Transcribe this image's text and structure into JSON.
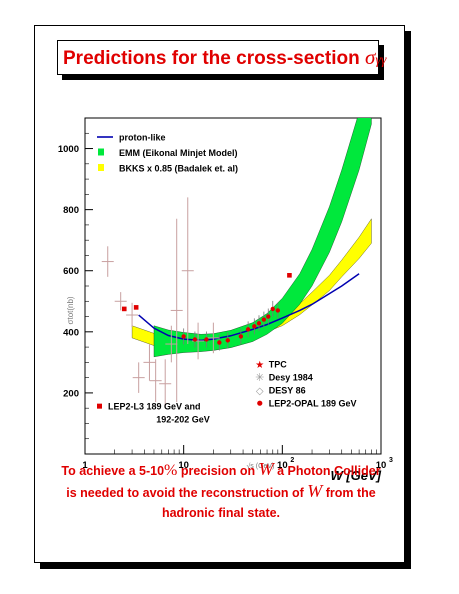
{
  "title": {
    "prefix": "Predictions for the cross-section",
    "symbol": "σ",
    "subscript": "γγ"
  },
  "caption": {
    "l1a": "To achieve a 5-10",
    "l1pct": "%",
    "l1b": " precision on ",
    "l1w": "W",
    "l1c": " a Photon Collider",
    "l2a": "is needed to avoid the reconstruction of ",
    "l2w": "W",
    "l2b": " from the",
    "l3": "hadronic final state."
  },
  "colors": {
    "title": "#e00000",
    "emm_band": "#00e83c",
    "bkks_band": "#ffff00",
    "proton_line": "#0000b0",
    "points": "#e00000",
    "old_data": "#c8a0a0"
  },
  "chart_data": {
    "type": "line",
    "xscale": "log",
    "xlim": [
      1,
      1000
    ],
    "ylim": [
      0,
      1100
    ],
    "grid": false,
    "xticks": [
      {
        "v": 1,
        "base": "1",
        "exp": ""
      },
      {
        "v": 10,
        "base": "10",
        "exp": ""
      },
      {
        "v": 100,
        "base": "10",
        "exp": "2"
      },
      {
        "v": 1000,
        "base": "10",
        "exp": "3"
      }
    ],
    "yticks": [
      200,
      400,
      600,
      800,
      1000
    ],
    "xlabel_small": "√s (GeV)",
    "xlabel_big": "W [GeV]",
    "ylabel": "σtot(nb)",
    "legend_top": [
      {
        "label": "proton-like",
        "kind": "line",
        "color": "#0000b0"
      },
      {
        "label": "EMM (Eikonal Minjet Model)",
        "kind": "box",
        "color": "#00e83c"
      },
      {
        "label": "BKKS x 0.85 (Badalek et. al)",
        "kind": "box",
        "color": "#ffff00"
      }
    ],
    "legend_bottom_right": [
      {
        "label": "TPC",
        "marker": "star"
      },
      {
        "label": "Desy 1984",
        "marker": "asterisk"
      },
      {
        "label": "DESY 86",
        "marker": "diamond"
      },
      {
        "label": "LEP2-OPAL 189 GeV",
        "marker": "circle"
      }
    ],
    "legend_bottom_left": {
      "line1": "LEP2-L3 189 GeV and",
      "line2": "192-202 GeV",
      "marker": "square"
    },
    "series": [
      {
        "name": "proton-like",
        "x": [
          3.5,
          5,
          7,
          10,
          15,
          20,
          30,
          50,
          70,
          100,
          150,
          200,
          300,
          400,
          600
        ],
        "y": [
          455,
          412,
          388,
          376,
          372,
          376,
          387,
          408,
          424,
          445,
          470,
          490,
          525,
          550,
          590
        ]
      },
      {
        "name": "EMM (Eikonal Minjet Model)",
        "x": [
          5,
          7,
          10,
          15,
          20,
          30,
          50,
          70,
          100,
          150,
          200,
          300,
          400,
          600,
          800
        ],
        "lower": [
          318,
          326,
          332,
          335,
          339,
          348,
          368,
          392,
          428,
          490,
          550,
          660,
          760,
          930,
          1080
        ],
        "upper": [
          420,
          406,
          398,
          392,
          394,
          405,
          430,
          460,
          510,
          590,
          670,
          810,
          930,
          1120,
          1160
        ]
      },
      {
        "name": "BKKS x 0.85 (Badalek et. al)",
        "x": [
          3,
          5,
          7,
          10,
          15,
          20,
          30,
          50,
          70,
          100,
          150,
          200,
          300,
          400,
          600,
          800
        ],
        "lower": [
          380,
          355,
          345,
          342,
          345,
          350,
          362,
          383,
          400,
          420,
          456,
          488,
          535,
          580,
          640,
          690
        ],
        "upper": [
          420,
          395,
          382,
          375,
          374,
          377,
          388,
          410,
          428,
          452,
          492,
          530,
          585,
          635,
          710,
          770
        ]
      }
    ],
    "points_l3": [
      {
        "x": 2.5,
        "y": 475
      },
      {
        "x": 3.3,
        "y": 480
      },
      {
        "x": 118,
        "y": 585
      }
    ],
    "points_opal": [
      {
        "x": 10,
        "y": 385
      },
      {
        "x": 13,
        "y": 375
      },
      {
        "x": 17,
        "y": 375
      },
      {
        "x": 23,
        "y": 365
      },
      {
        "x": 28,
        "y": 372
      },
      {
        "x": 38,
        "y": 385
      },
      {
        "x": 45,
        "y": 408
      },
      {
        "x": 52,
        "y": 418
      },
      {
        "x": 58,
        "y": 428
      },
      {
        "x": 65,
        "y": 440
      },
      {
        "x": 72,
        "y": 450
      },
      {
        "x": 80,
        "y": 475
      },
      {
        "x": 90,
        "y": 470
      }
    ],
    "points_old": [
      {
        "x": 1.7,
        "y": 630,
        "err": 50
      },
      {
        "x": 2.3,
        "y": 500,
        "err": 30
      },
      {
        "x": 3.0,
        "y": 455,
        "err": 40
      },
      {
        "x": 3.5,
        "y": 250,
        "err": 50
      },
      {
        "x": 4.5,
        "y": 300,
        "err": 60
      },
      {
        "x": 5.2,
        "y": 240,
        "err": 70
      },
      {
        "x": 6.5,
        "y": 230,
        "err": 80
      },
      {
        "x": 7.5,
        "y": 360,
        "err": 60
      },
      {
        "x": 8.5,
        "y": 470,
        "err": 300
      },
      {
        "x": 11,
        "y": 600,
        "err": 240
      },
      {
        "x": 14,
        "y": 370,
        "err": 60
      },
      {
        "x": 20,
        "y": 380,
        "err": 50
      }
    ]
  }
}
